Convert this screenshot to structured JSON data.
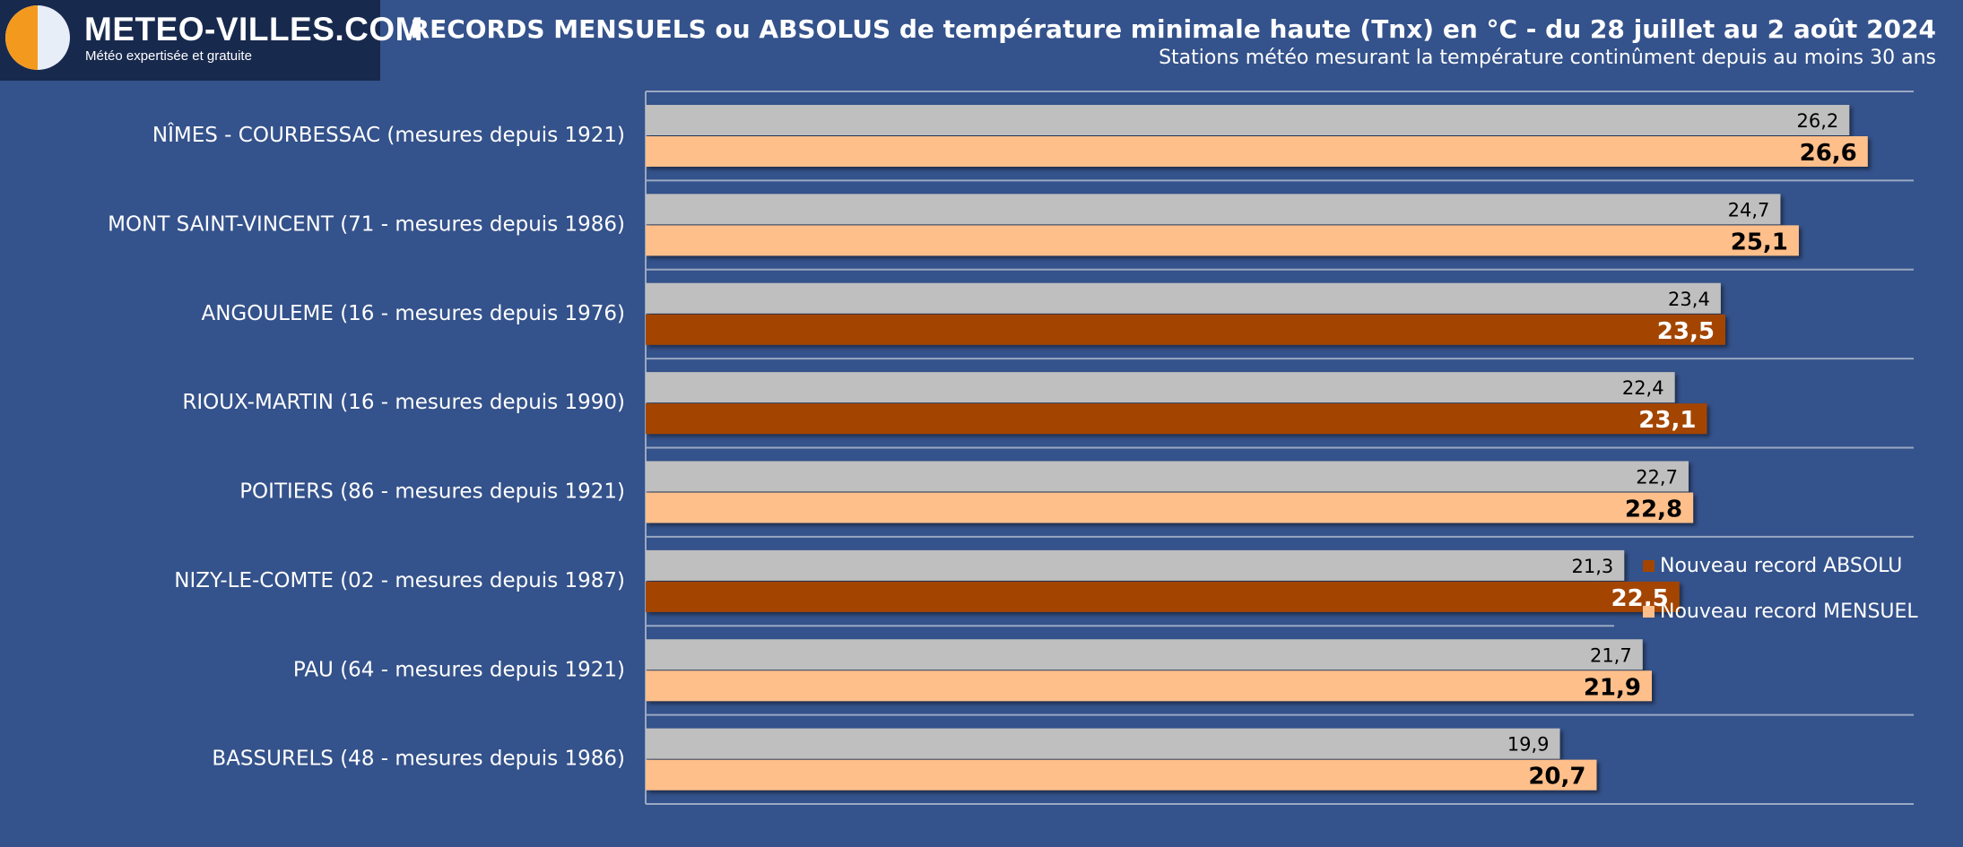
{
  "header": {
    "brand": "METEO-VILLES.COM",
    "tagline": "Météo expertisée et gratuite",
    "title": "RECORDS MENSUELS ou ABSOLUS de température minimale haute (Tnx) en °C - du 28 juillet au 2 août 2024",
    "subtitle": "Stations météo mesurant la température continûment depuis au moins 30 ans"
  },
  "legend": {
    "absolu": "Nouveau record ABSOLU",
    "mensuel": "Nouveau record MENSUEL"
  },
  "colors": {
    "background": "#34528b",
    "previous": "#bfbfbf",
    "mensuel": "#ffbf8a",
    "absolu": "#a34500"
  },
  "chart_data": {
    "type": "bar",
    "orientation": "horizontal",
    "title": "RECORDS MENSUELS ou ABSOLUS de température minimale haute (Tnx) en °C - du 28 juillet au 2 août 2024",
    "xlim": [
      0,
      27.6
    ],
    "grid": true,
    "legend_position": "right",
    "categories": [
      "NÎMES - COURBESSAC (mesures depuis 1921)",
      "MONT SAINT-VINCENT (71 - mesures depuis 1986)",
      "ANGOULEME (16 - mesures depuis 1976)",
      "RIOUX-MARTIN (16 - mesures depuis 1990)",
      "POITIERS (86 - mesures depuis 1921)",
      "NIZY-LE-COMTE (02 - mesures depuis 1987)",
      "PAU (64 - mesures depuis 1921)",
      "BASSURELS (48 - mesures depuis 1986)"
    ],
    "series": [
      {
        "values": [
          26.2,
          24.7,
          23.4,
          22.4,
          22.7,
          21.3,
          21.7,
          19.9
        ],
        "labels": [
          "26,2",
          "24,7",
          "23,4",
          "22,4",
          "22,7",
          "21,3",
          "21,7",
          "19,9"
        ]
      },
      {
        "values": [
          26.6,
          25.1,
          23.5,
          23.1,
          22.8,
          22.5,
          21.9,
          20.7
        ],
        "labels": [
          "26,6",
          "25,1",
          "23,5",
          "23,1",
          "22,8",
          "22,5",
          "21,9",
          "20,7"
        ],
        "record_type": [
          "mensuel",
          "mensuel",
          "absolu",
          "absolu",
          "mensuel",
          "absolu",
          "mensuel",
          "mensuel"
        ]
      }
    ]
  }
}
